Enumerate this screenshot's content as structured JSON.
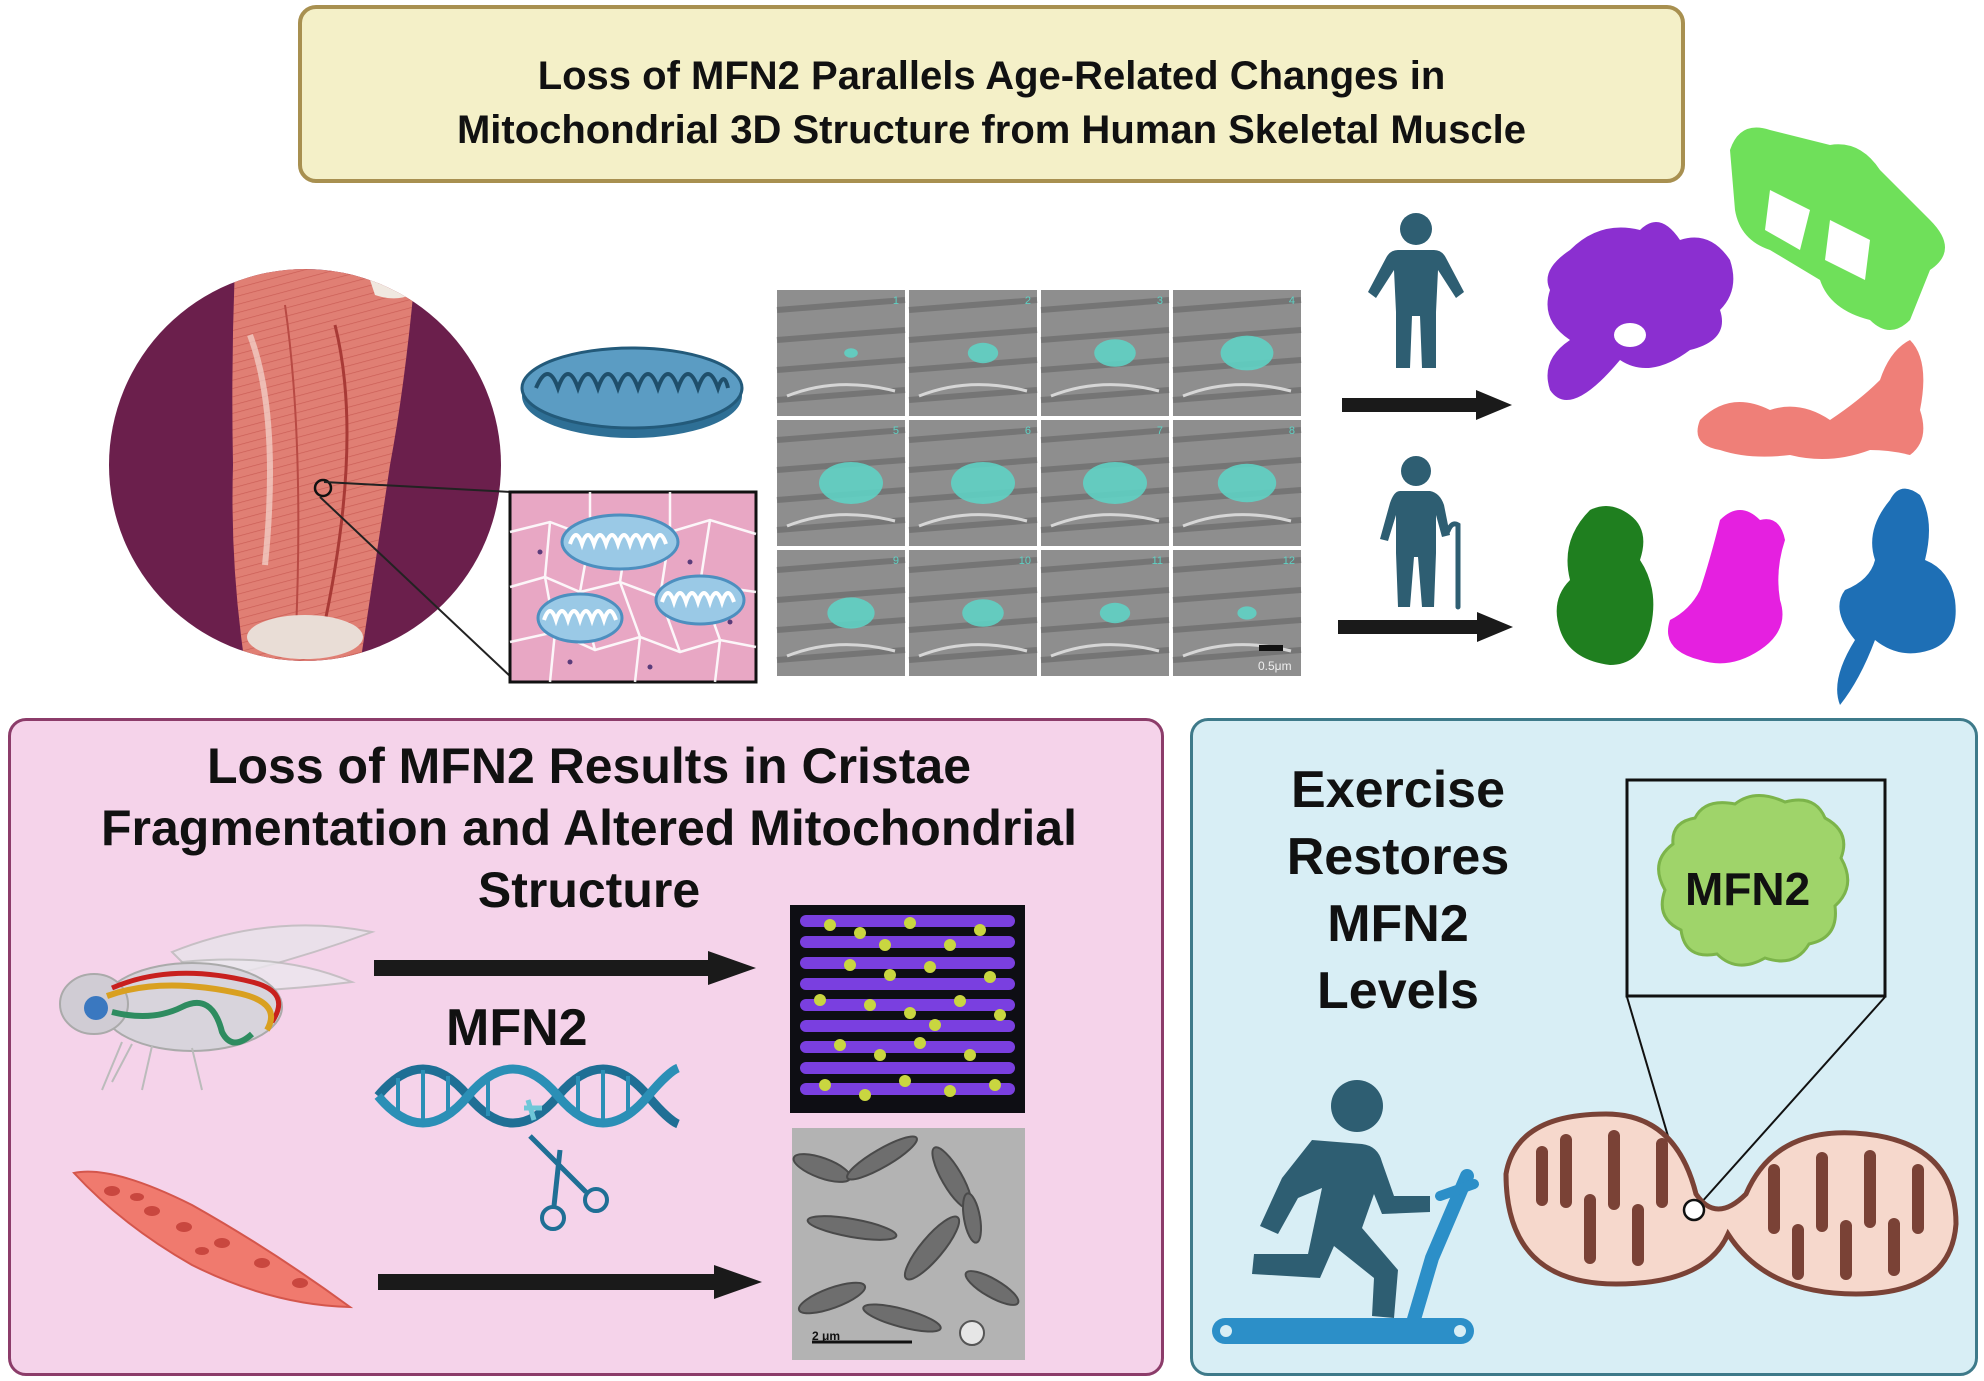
{
  "header": {
    "title": "Loss of MFN2 Parallels Age-Related Changes in\nMitochondrial 3D Structure from Human Skeletal Muscle"
  },
  "muscle_panel": {
    "icons": [
      "thigh-muscle-illustration",
      "mitochondrion-icon",
      "muscle-tissue-cross-section"
    ]
  },
  "em_grid": {
    "tile_numbers": [
      "1",
      "2",
      "3",
      "4",
      "5",
      "6",
      "7",
      "8",
      "9",
      "10",
      "11",
      "12"
    ],
    "scale_bar": "0.5μm"
  },
  "aging_comparison": {
    "icons": [
      "adult-person-icon",
      "elderly-person-with-cane-icon"
    ],
    "young_shape_colors": [
      "#8b2fd0",
      "#6fe05a",
      "#ef7f78"
    ],
    "old_shape_colors": [
      "#1f7f1f",
      "#e520e0",
      "#1e6fb5"
    ]
  },
  "knockdown_panel": {
    "title": "Loss of MFN2 Results in Cristae\nFragmentation and Altered  Mitochondrial\nStructure",
    "gene_label": "MFN2",
    "scale_bar": "2 μm",
    "icons": [
      "fruit-fly-icon",
      "dna-helix-icon",
      "scissors-icon",
      "myotube-cell-icon"
    ]
  },
  "exercise_panel": {
    "title": "Exercise\nRestores\nMFN2\nLevels",
    "protein_label": "MFN2",
    "icons": [
      "treadmill-runner-icon",
      "mitochondrion-icon",
      "mfn2-protein-icon"
    ]
  },
  "colors": {
    "title_bg": "#f4f0c8",
    "pink_bg": "#f5d3ea",
    "blue_bg": "#d8eef5",
    "icon_teal": "#2e5e72",
    "treadmill_blue": "#2c8fc8"
  }
}
